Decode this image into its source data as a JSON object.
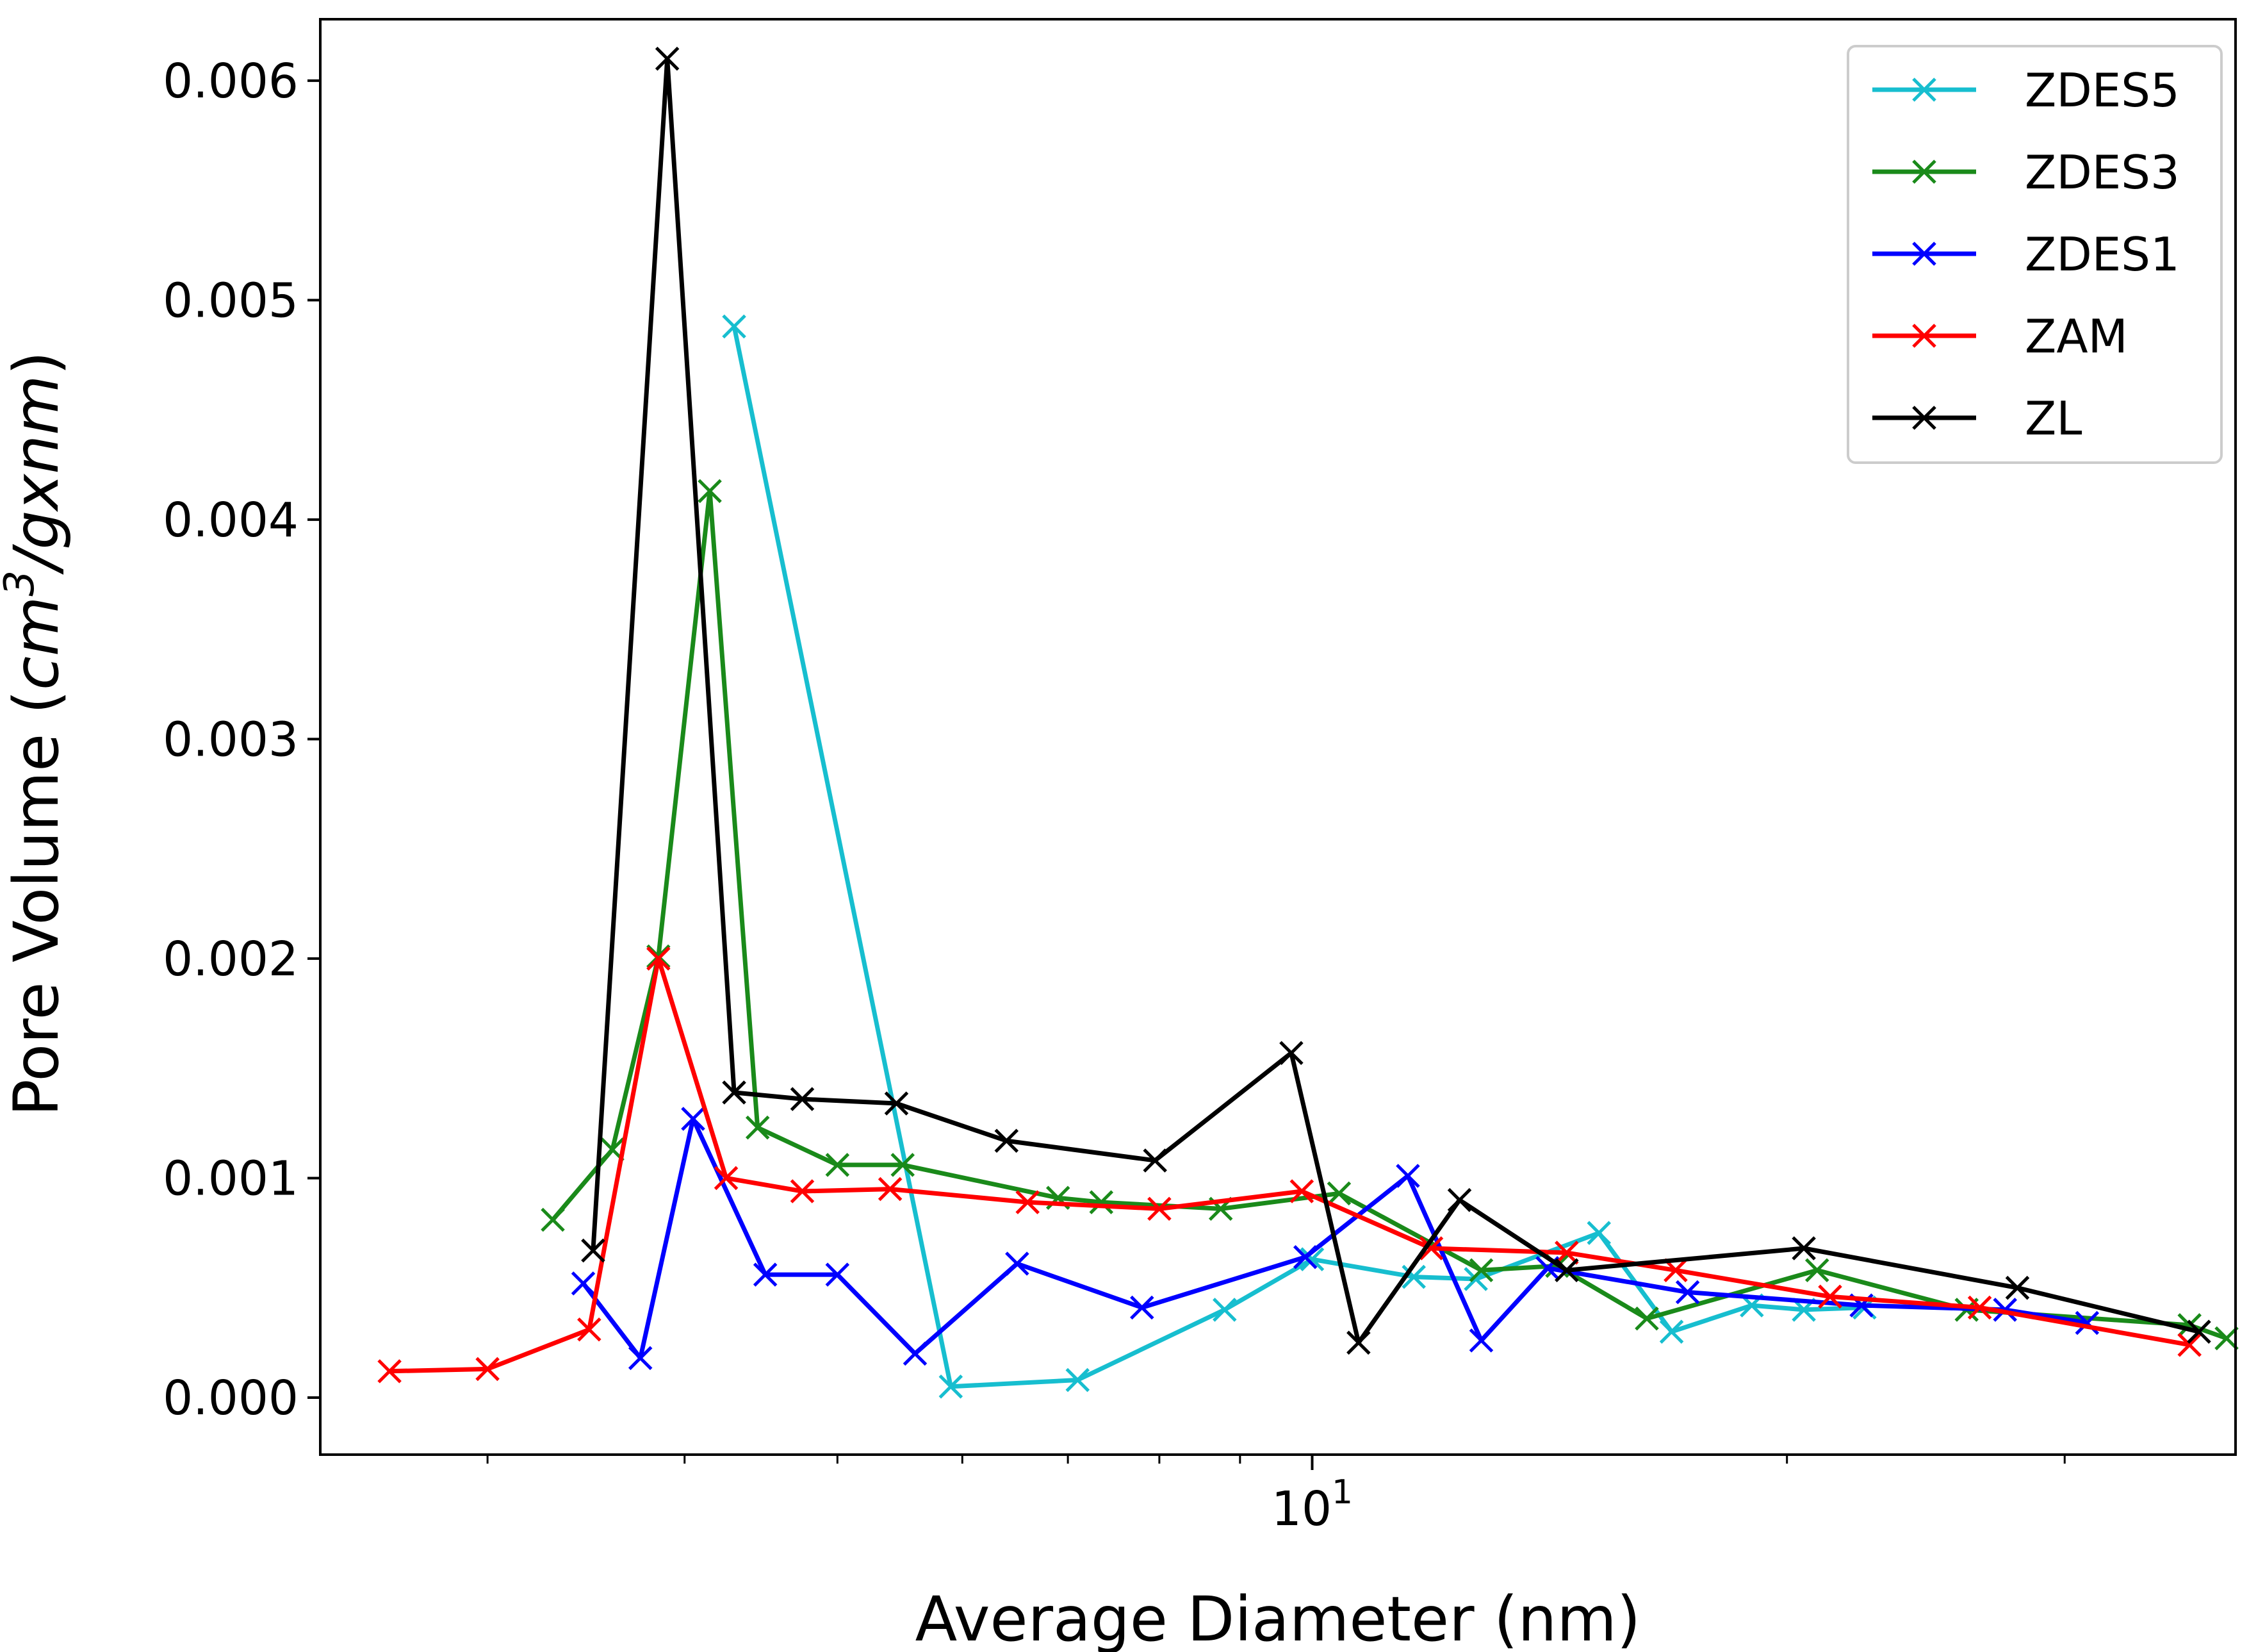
{
  "chart_data": {
    "type": "line",
    "xscale": "log",
    "xlabel": "Average Diameter (nm)",
    "ylabel_prefix": "Pore Volume (",
    "ylabel_unit_base": "cm",
    "ylabel_unit_exp": "3",
    "ylabel_unit_rest": "/gxnm",
    "ylabel_suffix": ")",
    "xlim": [
      2.35,
      38.5
    ],
    "ylim": [
      -0.00026,
      0.00628
    ],
    "xticks_major": [
      {
        "value": 10,
        "base": "10",
        "exp": "1"
      }
    ],
    "xticks_minor": [
      3,
      4,
      5,
      6,
      7,
      8,
      9,
      20,
      30
    ],
    "yticks": [
      {
        "value": 0.0,
        "label": "0.000"
      },
      {
        "value": 0.001,
        "label": "0.001"
      },
      {
        "value": 0.002,
        "label": "0.002"
      },
      {
        "value": 0.003,
        "label": "0.003"
      },
      {
        "value": 0.004,
        "label": "0.004"
      },
      {
        "value": 0.005,
        "label": "0.005"
      },
      {
        "value": 0.006,
        "label": "0.006"
      }
    ],
    "legend_position": "upper right",
    "series": [
      {
        "name": "ZDES5",
        "color": "#17becf",
        "x": [
          4.3,
          5.9,
          7.1,
          8.8,
          10.0,
          11.6,
          12.7,
          15.2,
          16.9,
          19.0,
          20.5,
          22.4
        ],
        "y": [
          0.00488,
          5e-05,
          8e-05,
          0.0004,
          0.00063,
          0.00055,
          0.00054,
          0.00075,
          0.0003,
          0.00042,
          0.0004,
          0.00041
        ]
      },
      {
        "name": "ZDES3",
        "color": "#1a8a1a",
        "x": [
          3.3,
          3.6,
          3.85,
          4.15,
          4.45,
          5.0,
          5.5,
          6.9,
          7.35,
          8.75,
          10.4,
          12.8,
          14.3,
          16.3,
          20.9,
          26.0,
          36.0,
          38.0
        ],
        "y": [
          0.00081,
          0.00113,
          0.00201,
          0.00413,
          0.00123,
          0.00106,
          0.00106,
          0.00091,
          0.00089,
          0.00086,
          0.00093,
          0.00058,
          0.0006,
          0.00036,
          0.00058,
          0.0004,
          0.00033,
          0.00027
        ]
      },
      {
        "name": "ZDES1",
        "color": "#0000ff",
        "x": [
          3.45,
          3.75,
          4.05,
          4.5,
          5.0,
          5.6,
          6.5,
          7.8,
          9.9,
          11.5,
          12.8,
          14.1,
          17.3,
          22.3,
          27.5,
          31.0
        ],
        "y": [
          0.00052,
          0.00018,
          0.00127,
          0.00056,
          0.00056,
          0.0002,
          0.00061,
          0.00041,
          0.00064,
          0.00101,
          0.00026,
          0.00059,
          0.00048,
          0.00042,
          0.0004,
          0.00034
        ]
      },
      {
        "name": "ZAM",
        "color": "#ff0000",
        "x": [
          2.6,
          3.0,
          3.48,
          3.85,
          4.25,
          4.75,
          5.4,
          6.6,
          8.0,
          9.85,
          11.9,
          14.5,
          17.0,
          21.3,
          26.5,
          36.0
        ],
        "y": [
          0.00012,
          0.00013,
          0.00031,
          0.002,
          0.001,
          0.00094,
          0.00095,
          0.00089,
          0.00086,
          0.00094,
          0.00068,
          0.00066,
          0.00058,
          0.00046,
          0.00041,
          0.00024
        ]
      },
      {
        "name": "ZL",
        "color": "#000000",
        "x": [
          3.5,
          3.9,
          4.3,
          4.75,
          5.45,
          6.4,
          7.95,
          9.7,
          10.7,
          12.4,
          14.5,
          20.5,
          28.0,
          36.5
        ],
        "y": [
          0.00067,
          0.0061,
          0.00139,
          0.00136,
          0.00134,
          0.00117,
          0.00108,
          0.00157,
          0.00025,
          0.0009,
          0.00058,
          0.00068,
          0.0005,
          0.0003
        ]
      }
    ]
  }
}
